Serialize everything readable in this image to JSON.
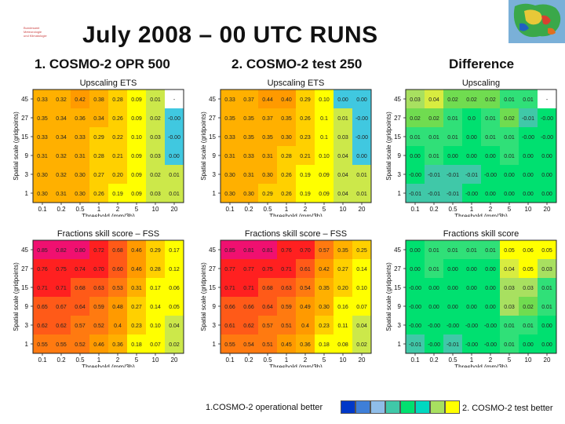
{
  "slide": {
    "title": "July 2008 – 00 UTC RUNS",
    "logo_lines": [
      "Bundesamt",
      "Meteorologie",
      "und Klimatologie"
    ],
    "columns": [
      "1. COSMO-2 OPR 500",
      "2. COSMO-2 test 250",
      "Difference"
    ]
  },
  "legend": {
    "left_label": "1.COSMO-2  operational better",
    "right_label": "2. COSMO-2 test better",
    "colors": [
      "#0038c8",
      "#3f7fd8",
      "#8fbde8",
      "#40c8a8",
      "#00e070",
      "#00d8c0",
      "#a8e060",
      "#ffff00"
    ]
  },
  "chart_data": [
    {
      "type": "heatmap",
      "title": "Upscaling ETS",
      "xlabel": "Threshold (mm/3h)",
      "ylabel": "Spatial scale (gridpoints)",
      "xticks": [
        "0.1",
        "0.2",
        "0.5",
        "1",
        "2",
        "5",
        "10",
        "20"
      ],
      "yticks": [
        "45",
        "27",
        "15",
        "9",
        "3",
        "1"
      ],
      "values": [
        [
          "0.33",
          "0.32",
          "0.42",
          "0.38",
          "0.28",
          "0.09",
          "0.01",
          "-"
        ],
        [
          "0.35",
          "0.34",
          "0.36",
          "0.34",
          "0.26",
          "0.09",
          "0.02",
          "-0.00"
        ],
        [
          "0.33",
          "0.34",
          "0.33",
          "0.29",
          "0.22",
          "0.10",
          "0.03",
          "-0.00"
        ],
        [
          "0.31",
          "0.32",
          "0.31",
          "0.28",
          "0.21",
          "0.09",
          "0.03",
          "0.00"
        ],
        [
          "0.30",
          "0.32",
          "0.30",
          "0.27",
          "0.20",
          "0.09",
          "0.02",
          "0.01"
        ],
        [
          "0.30",
          "0.31",
          "0.30",
          "0.26",
          "0.19",
          "0.09",
          "0.03",
          "0.01"
        ]
      ]
    },
    {
      "type": "heatmap",
      "title": "Upscaling ETS",
      "xlabel": "Threshold (mm/3h)",
      "ylabel": "Spatial scale (gridpoints)",
      "xticks": [
        "0.1",
        "0.2",
        "0.5",
        "1",
        "2",
        "5",
        "10",
        "20"
      ],
      "yticks": [
        "45",
        "27",
        "15",
        "9",
        "3",
        "1"
      ],
      "values": [
        [
          "0.33",
          "0.37",
          "0.44",
          "0.40",
          "0.29",
          "0.10",
          "0.00",
          "0.00"
        ],
        [
          "0.35",
          "0.35",
          "0.37",
          "0.35",
          "0.26",
          "0.1",
          "0.01",
          "-0.00"
        ],
        [
          "0.33",
          "0.35",
          "0.35",
          "0.30",
          "0.23",
          "0.1",
          "0.03",
          "-0.00"
        ],
        [
          "0.31",
          "0.33",
          "0.31",
          "0.28",
          "0.21",
          "0.10",
          "0.04",
          "0.00"
        ],
        [
          "0.30",
          "0.31",
          "0.30",
          "0.26",
          "0.19",
          "0.09",
          "0.04",
          "0.01"
        ],
        [
          "0.30",
          "0.30",
          "0.29",
          "0.26",
          "0.19",
          "0.09",
          "0.04",
          "0.01"
        ]
      ]
    },
    {
      "type": "heatmap",
      "title": "Upscaling",
      "xlabel": "Threshold (mm/3h)",
      "ylabel": "Spatial scale (gridpoints)",
      "xticks": [
        "0.1",
        "0.2",
        "0.5",
        "1",
        "2",
        "5",
        "10",
        "20"
      ],
      "yticks": [
        "45",
        "27",
        "15",
        "9",
        "3",
        "1"
      ],
      "values": [
        [
          "0.03",
          "0.04",
          "0.02",
          "0.02",
          "0.02",
          "0.01",
          "0.01",
          "-"
        ],
        [
          "0.02",
          "0.02",
          "0.01",
          "0.0",
          "0.01",
          "0.02",
          "-0.01",
          "-0.00"
        ],
        [
          "0.01",
          "0.01",
          "0.01",
          "0.00",
          "0.01",
          "0.01",
          "-0.00",
          "-0.00"
        ],
        [
          "0.00",
          "0.01",
          "0.00",
          "0.00",
          "0.00",
          "0.01",
          "0.00",
          "0.00"
        ],
        [
          "-0.00",
          "-0.01",
          "-0.01",
          "-0.01",
          "-0.00",
          "0.00",
          "0.00",
          "0.00"
        ],
        [
          "-0.01",
          "-0.01",
          "-0.01",
          "-0.00",
          "0.00",
          "0.00",
          "0.00",
          "0.00"
        ]
      ]
    },
    {
      "type": "heatmap",
      "title": "Fractions skill score – FSS",
      "xlabel": "Threshold (mm/3h)",
      "ylabel": "Spatial scale (gridpoints)",
      "xticks": [
        "0.1",
        "0.2",
        "0.5",
        "1",
        "2",
        "5",
        "10",
        "20"
      ],
      "yticks": [
        "45",
        "27",
        "15",
        "9",
        "3",
        "1"
      ],
      "values": [
        [
          "0.85",
          "0.82",
          "0.80",
          "0.72",
          "0.68",
          "0.46",
          "0.29",
          "0.17"
        ],
        [
          "0.76",
          "0.75",
          "0.74",
          "0.70",
          "0.60",
          "0.46",
          "0.28",
          "0.12"
        ],
        [
          "0.71",
          "0.71",
          "0.68",
          "0.63",
          "0.53",
          "0.31",
          "0.17",
          "0.06"
        ],
        [
          "0.65",
          "0.67",
          "0.64",
          "0.59",
          "0.48",
          "0.27",
          "0.14",
          "0.05"
        ],
        [
          "0.62",
          "0.62",
          "0.57",
          "0.52",
          "0.4",
          "0.23",
          "0.10",
          "0.04"
        ],
        [
          "0.55",
          "0.55",
          "0.52",
          "0.46",
          "0.36",
          "0.18",
          "0.07",
          "0.02"
        ]
      ]
    },
    {
      "type": "heatmap",
      "title": "Fractions skill score – FSS",
      "xlabel": "Threshold (mm/3h)",
      "ylabel": "Spatial scale (gridpoints)",
      "xticks": [
        "0.1",
        "0.2",
        "0.5",
        "1",
        "2",
        "5",
        "10",
        "20"
      ],
      "yticks": [
        "45",
        "27",
        "15",
        "9",
        "3",
        "1"
      ],
      "values": [
        [
          "0.85",
          "0.81",
          "0.81",
          "0.76",
          "0.70",
          "0.57",
          "0.35",
          "0.25"
        ],
        [
          "0.77",
          "0.77",
          "0.75",
          "0.71",
          "0.61",
          "0.42",
          "0.27",
          "0.14"
        ],
        [
          "0.71",
          "0.71",
          "0.68",
          "0.63",
          "0.54",
          "0.35",
          "0.20",
          "0.10"
        ],
        [
          "0.66",
          "0.66",
          "0.64",
          "0.59",
          "0.49",
          "0.30",
          "0.16",
          "0.07"
        ],
        [
          "0.61",
          "0.62",
          "0.57",
          "0.51",
          "0.4",
          "0.23",
          "0.11",
          "0.04"
        ],
        [
          "0.55",
          "0.54",
          "0.51",
          "0.45",
          "0.36",
          "0.18",
          "0.08",
          "0.02"
        ]
      ]
    },
    {
      "type": "heatmap",
      "title": "Fractions skill score",
      "xlabel": "Threshold (mm/3h)",
      "ylabel": "Spatial scale (gridpoints)",
      "xticks": [
        "0.1",
        "0.2",
        "0.5",
        "1",
        "2",
        "5",
        "10",
        "20"
      ],
      "yticks": [
        "45",
        "27",
        "15",
        "9",
        "3",
        "1"
      ],
      "values": [
        [
          "0.00",
          "0.01",
          "0.01",
          "0.01",
          "0.01",
          "0.05",
          "0.06",
          "0.05"
        ],
        [
          "0.00",
          "0.01",
          "0.00",
          "0.00",
          "0.00",
          "0.04",
          "0.05",
          "0.03"
        ],
        [
          "-0.00",
          "0.00",
          "0.00",
          "0.00",
          "0.00",
          "0.03",
          "0.03",
          "0.01"
        ],
        [
          "-0.00",
          "0.00",
          "0.00",
          "0.00",
          "0.00",
          "0.03",
          "0.02",
          "0.01"
        ],
        [
          "-0.00",
          "-0.00",
          "-0.00",
          "-0.00",
          "-0.00",
          "0.01",
          "0.01",
          "0.00"
        ],
        [
          "-0.01",
          "-0.00",
          "-0.01",
          "-0.00",
          "-0.00",
          "0.01",
          "0.00",
          "0.00"
        ]
      ]
    }
  ]
}
